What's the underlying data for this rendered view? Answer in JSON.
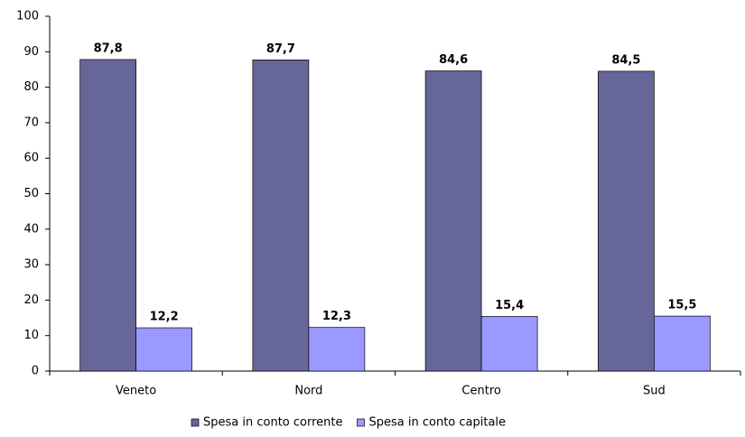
{
  "chart_data": {
    "type": "bar",
    "categories": [
      "Veneto",
      "Nord",
      "Centro",
      "Sud"
    ],
    "series": [
      {
        "name": "Spesa in conto corrente",
        "color": "#666699",
        "values": [
          87.8,
          87.7,
          84.6,
          84.5
        ],
        "value_labels": [
          "87,8",
          "87,7",
          "84,6",
          "84,5"
        ]
      },
      {
        "name": "Spesa in conto capitale",
        "color": "#9999ff",
        "values": [
          12.2,
          12.3,
          15.4,
          15.5
        ],
        "value_labels": [
          "12,2",
          "12,3",
          "15,4",
          "15,5"
        ]
      }
    ],
    "ylim": [
      0,
      100
    ],
    "yticks": [
      0,
      10,
      20,
      30,
      40,
      50,
      60,
      70,
      80,
      90,
      100
    ],
    "grid": false,
    "legend": "bottom"
  }
}
